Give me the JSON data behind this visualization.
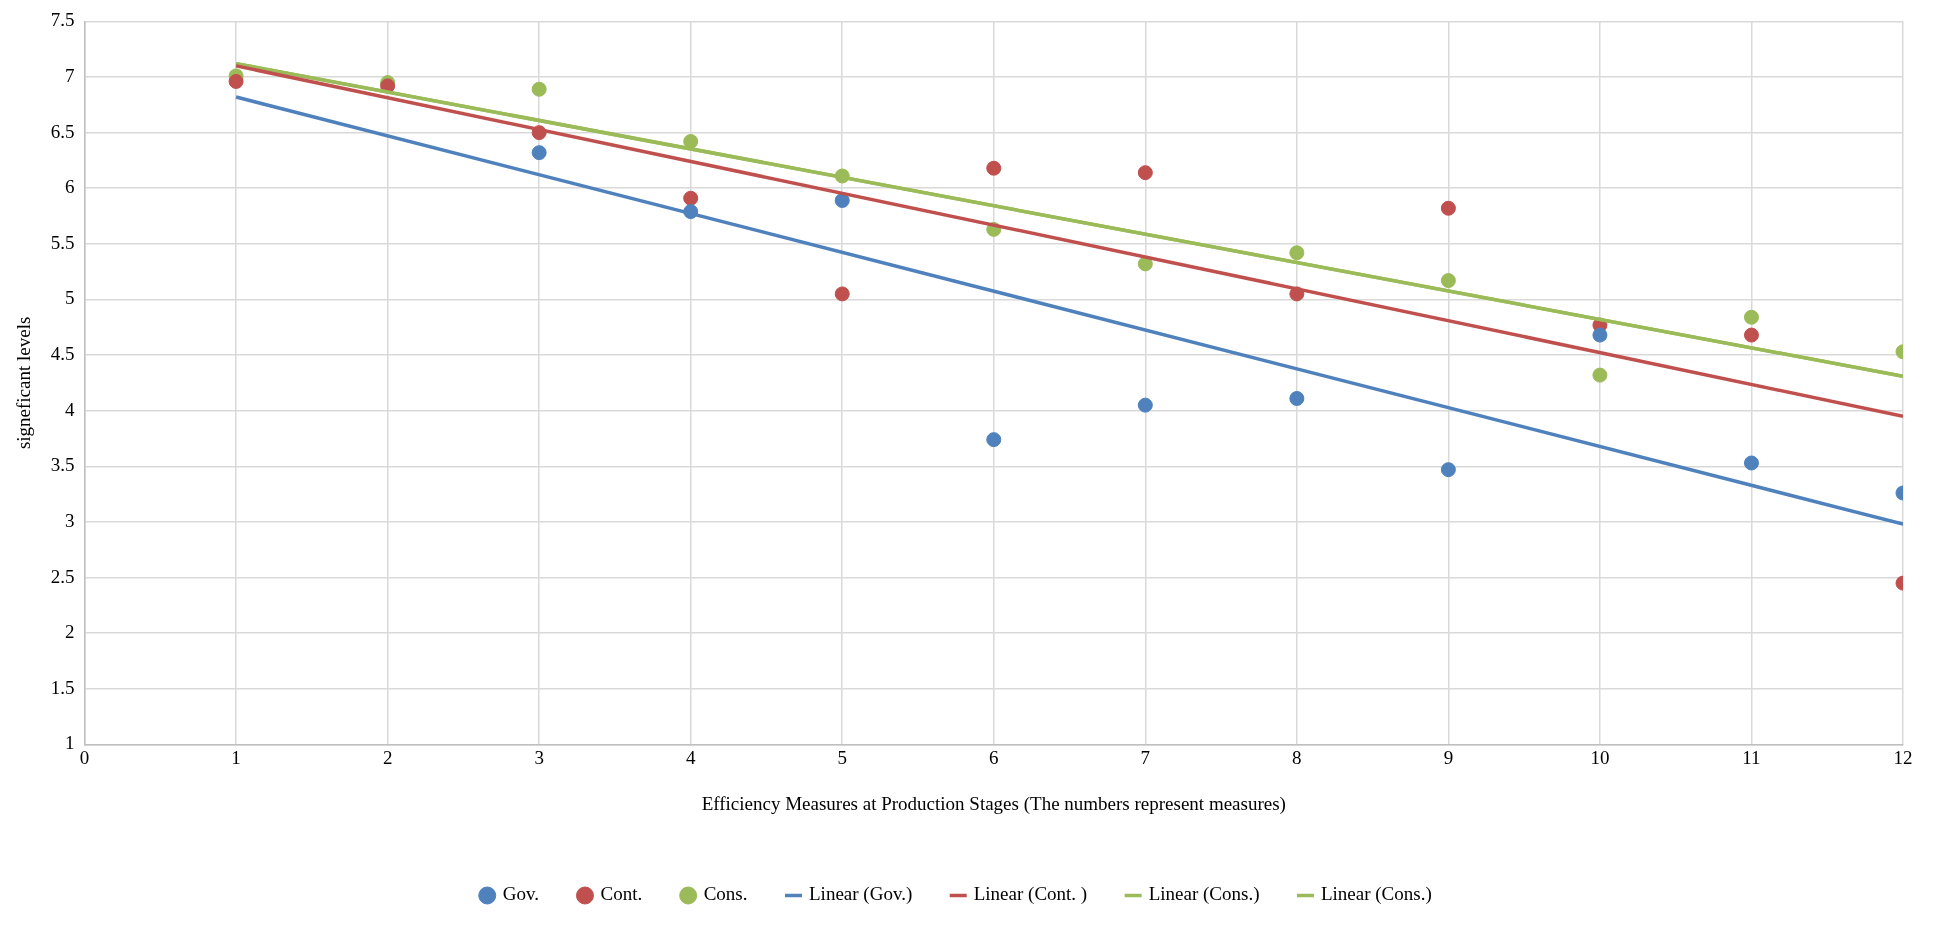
{
  "chart_data": {
    "type": "scatter",
    "xlabel": "Efficiency Measures at Production Stages (The numbers represent measures)",
    "ylabel": "signeficant levels",
    "x": [
      1,
      2,
      3,
      4,
      5,
      6,
      7,
      8,
      9,
      10,
      11,
      12
    ],
    "series": [
      {
        "name": "Gov.",
        "marker": "circle",
        "color": "#4f81bd",
        "values": [
          null,
          null,
          6.32,
          5.79,
          5.89,
          3.74,
          4.05,
          4.11,
          3.47,
          4.68,
          3.53,
          3.26
        ]
      },
      {
        "name": "Cont.",
        "marker": "circle",
        "color": "#c0504d",
        "values": [
          6.96,
          6.92,
          6.5,
          5.91,
          5.05,
          6.18,
          6.14,
          5.05,
          5.82,
          4.77,
          4.68,
          2.45
        ]
      },
      {
        "name": "Cons.",
        "marker": "circle",
        "color": "#9bbb59",
        "values": [
          7.01,
          6.95,
          6.89,
          6.42,
          6.11,
          5.63,
          5.32,
          5.42,
          5.17,
          4.32,
          4.84,
          4.53
        ]
      },
      {
        "name": "Linear (Gov.)",
        "type": "line",
        "marker": "none",
        "color": "#4f81bd",
        "values": [
          6.82,
          null,
          null,
          null,
          null,
          null,
          null,
          null,
          null,
          null,
          null,
          2.98
        ]
      },
      {
        "name": "Linear (Cont. )",
        "type": "line",
        "marker": "none",
        "color": "#c0504d",
        "values": [
          7.1,
          null,
          null,
          null,
          null,
          null,
          null,
          null,
          null,
          null,
          null,
          3.95
        ]
      },
      {
        "name": "Linear (Cons.)",
        "type": "line",
        "marker": "none",
        "color": "#9bbb59",
        "values": [
          7.12,
          null,
          null,
          null,
          null,
          null,
          null,
          null,
          null,
          null,
          null,
          4.31
        ]
      },
      {
        "name": "Linear (Cons.)",
        "type": "line",
        "marker": "none",
        "color": "#9bbb59",
        "values": [
          7.12,
          null,
          null,
          null,
          null,
          null,
          null,
          null,
          null,
          null,
          null,
          4.31
        ]
      }
    ],
    "xlim": [
      0,
      12
    ],
    "xticks": [
      0,
      1,
      2,
      3,
      4,
      5,
      6,
      7,
      8,
      9,
      10,
      11,
      12
    ],
    "ylim": [
      1,
      7.5
    ],
    "yticks": [
      1,
      1.5,
      2,
      2.5,
      3,
      3.5,
      4,
      4.5,
      5,
      5.5,
      6,
      6.5,
      7,
      7.5
    ],
    "grid": true,
    "legend": "bottom",
    "line_style": "solid"
  }
}
